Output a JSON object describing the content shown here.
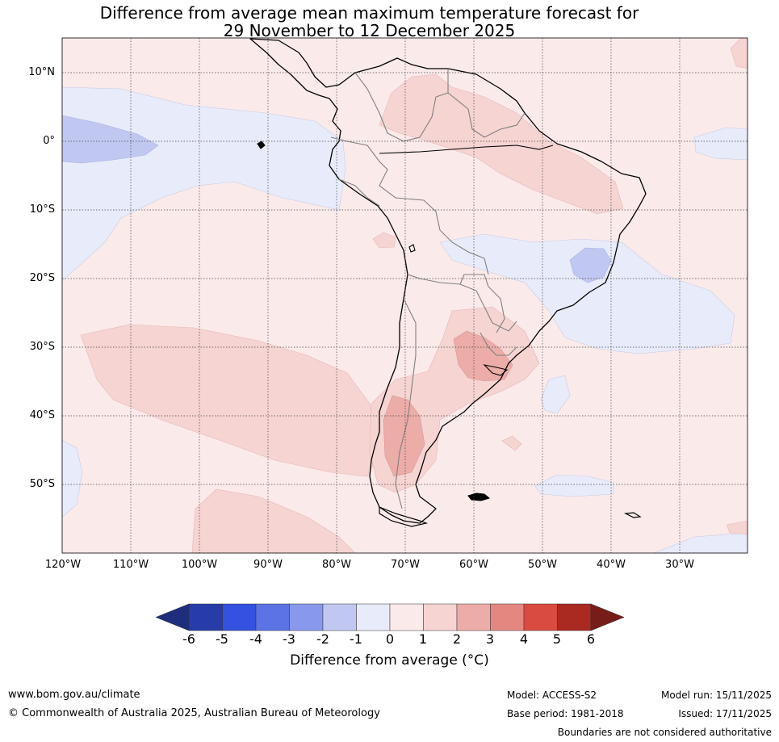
{
  "title": {
    "line1": "Difference from average mean maximum temperature forecast for",
    "line2": "29 November to 12 December 2025"
  },
  "map": {
    "lat_labels": [
      "10°N",
      "0°",
      "10°S",
      "20°S",
      "30°S",
      "40°S",
      "50°S"
    ],
    "lon_labels": [
      "120°W",
      "110°W",
      "100°W",
      "90°W",
      "80°W",
      "70°W",
      "60°W",
      "50°W",
      "40°W",
      "30°W"
    ],
    "extent": {
      "lon_min": -120,
      "lon_max": -20,
      "lat_min": -60,
      "lat_max": 15
    }
  },
  "colorbar": {
    "ticks": [
      "-6",
      "-5",
      "-4",
      "-3",
      "-2",
      "-1",
      "0",
      "1",
      "2",
      "3",
      "4",
      "5",
      "6"
    ],
    "colors": [
      "#283ca9",
      "#3451e0",
      "#5b73e4",
      "#8898ec",
      "#c0c8f2",
      "#e8ebf9",
      "#fbeaea",
      "#f5d4d2",
      "#ecaca8",
      "#e58781",
      "#d94a40",
      "#aa2a22"
    ],
    "low_extend_color": "#1e2e7c",
    "high_extend_color": "#771d19",
    "label": "Difference from average (°C)"
  },
  "footer": {
    "url": "www.bom.gov.au/climate",
    "copyright": "© Commonwealth of Australia 2025, Australian Bureau of Meteorology",
    "model": "Model: ACCESS-S2",
    "base_period": "Base period: 1981-2018",
    "model_run": "Model run: 15/11/2025",
    "issued": "Issued: 17/11/2025",
    "disclaimer": "Boundaries are not considered authoritative"
  }
}
